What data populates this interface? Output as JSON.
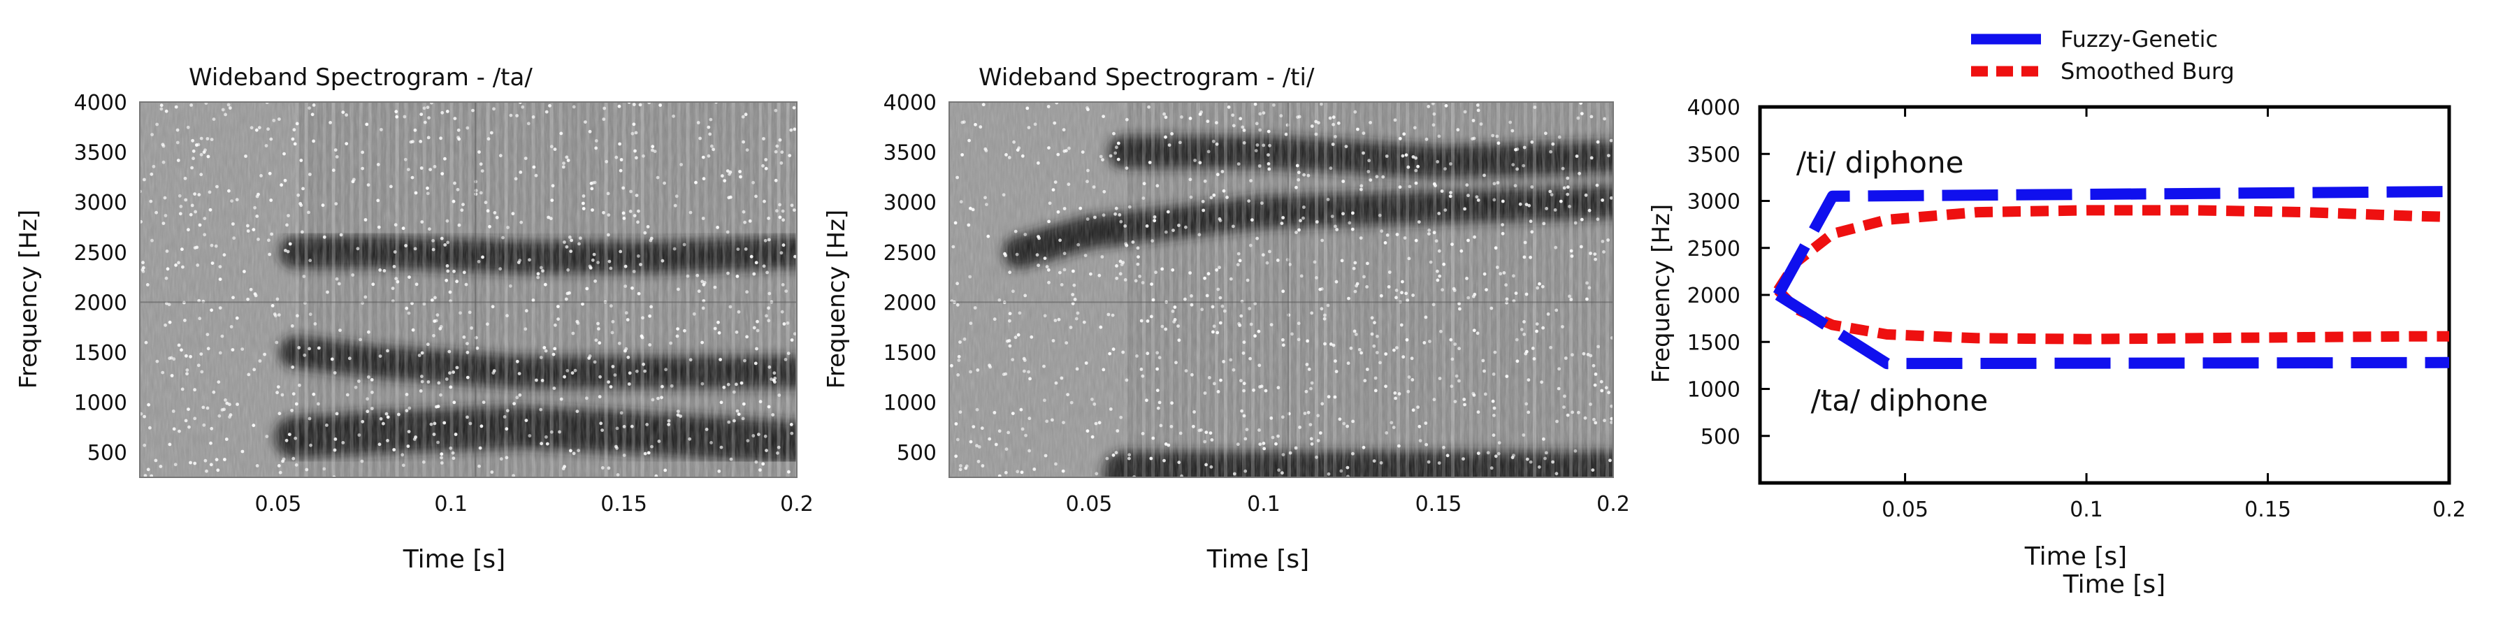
{
  "chart_data": [
    {
      "type": "heatmap",
      "title": "Wideband Spectrogram - /ta/",
      "xlabel": "Time [s]",
      "ylabel": "Frequency [Hz]",
      "xlim": [
        0.01,
        0.2
      ],
      "ylim": [
        250,
        4000
      ],
      "xticks": [
        "0.05",
        "0.1",
        "0.15",
        "0.2"
      ],
      "xtick_values": [
        0.05,
        0.1,
        0.15,
        0.2
      ],
      "yticks": [
        "500",
        "1000",
        "1500",
        "2000",
        "2500",
        "3000",
        "3500",
        "4000"
      ],
      "ytick_values": [
        500,
        1000,
        1500,
        2000,
        2500,
        3000,
        3500,
        4000
      ],
      "onset_time": 0.055,
      "formant_tracks": [
        {
          "t": [
            0.055,
            0.08,
            0.12,
            0.16,
            0.2
          ],
          "f": [
            650,
            700,
            750,
            680,
            600
          ]
        },
        {
          "t": [
            0.055,
            0.08,
            0.12,
            0.16,
            0.2
          ],
          "f": [
            1500,
            1400,
            1300,
            1300,
            1300
          ]
        },
        {
          "t": [
            0.055,
            0.08,
            0.12,
            0.16,
            0.2
          ],
          "f": [
            2500,
            2500,
            2450,
            2450,
            2500
          ]
        }
      ]
    },
    {
      "type": "heatmap",
      "title": "Wideband Spectrogram - /ti/",
      "xlabel": "Time [s]",
      "ylabel": "Frequency [Hz]",
      "xlim": [
        0.01,
        0.2
      ],
      "ylim": [
        250,
        4000
      ],
      "xticks": [
        "0.05",
        "0.1",
        "0.15",
        "0.2"
      ],
      "xtick_values": [
        0.05,
        0.1,
        0.15,
        0.2
      ],
      "yticks": [
        "500",
        "1000",
        "1500",
        "2000",
        "2500",
        "3000",
        "3500",
        "4000"
      ],
      "ytick_values": [
        500,
        1000,
        1500,
        2000,
        2500,
        3000,
        3500,
        4000
      ],
      "onset_time": 0.06,
      "formant_tracks": [
        {
          "t": [
            0.06,
            0.1,
            0.15,
            0.2
          ],
          "f": [
            300,
            300,
            300,
            300
          ]
        },
        {
          "t": [
            0.03,
            0.05,
            0.1,
            0.15,
            0.2
          ],
          "f": [
            2500,
            2700,
            2900,
            2950,
            3000
          ]
        },
        {
          "t": [
            0.06,
            0.1,
            0.15,
            0.2
          ],
          "f": [
            3500,
            3500,
            3400,
            3450
          ]
        }
      ]
    },
    {
      "type": "line",
      "title": "",
      "xlabel": "Time [s]",
      "ylabel": "Frequency [Hz]",
      "xlim": [
        0.01,
        0.2
      ],
      "ylim": [
        0,
        4000
      ],
      "xticks": [
        "0.05",
        "0.1",
        "0.15",
        "0.2"
      ],
      "xtick_values": [
        0.05,
        0.1,
        0.15,
        0.2
      ],
      "yticks": [
        "500",
        "1000",
        "1500",
        "2000",
        "2500",
        "3000",
        "3500",
        "4000"
      ],
      "ytick_values": [
        500,
        1000,
        1500,
        2000,
        2500,
        3000,
        3500,
        4000
      ],
      "legend_position": "top-center outside",
      "series": [
        {
          "name": "Fuzzy-Genetic",
          "color": "#1010ee",
          "style": "long-dash",
          "x": [
            0.015,
            0.03,
            0.2
          ],
          "y": [
            2000,
            3050,
            3100
          ]
        },
        {
          "name": "Fuzzy-Genetic",
          "color": "#1010ee",
          "style": "long-dash",
          "x": [
            0.015,
            0.045,
            0.2
          ],
          "y": [
            2000,
            1270,
            1280
          ]
        },
        {
          "name": "Smoothed Burg",
          "color": "#ee1010",
          "style": "short-dash",
          "x": [
            0.015,
            0.02,
            0.03,
            0.045,
            0.07,
            0.1,
            0.13,
            0.16,
            0.19,
            0.2
          ],
          "y": [
            2050,
            2350,
            2650,
            2800,
            2880,
            2900,
            2900,
            2880,
            2840,
            2830
          ]
        },
        {
          "name": "Smoothed Burg",
          "color": "#ee1010",
          "style": "short-dash",
          "x": [
            0.015,
            0.02,
            0.03,
            0.045,
            0.07,
            0.1,
            0.13,
            0.16,
            0.19,
            0.2
          ],
          "y": [
            2050,
            1850,
            1680,
            1580,
            1540,
            1530,
            1540,
            1550,
            1560,
            1560
          ]
        }
      ],
      "annotations": [
        {
          "text": "/ti/ diphone",
          "x": 0.02,
          "y": 3300
        },
        {
          "text": "/ta/ diphone",
          "x": 0.024,
          "y": 770
        }
      ],
      "duplicate_xlabel": "Time [s]"
    }
  ]
}
